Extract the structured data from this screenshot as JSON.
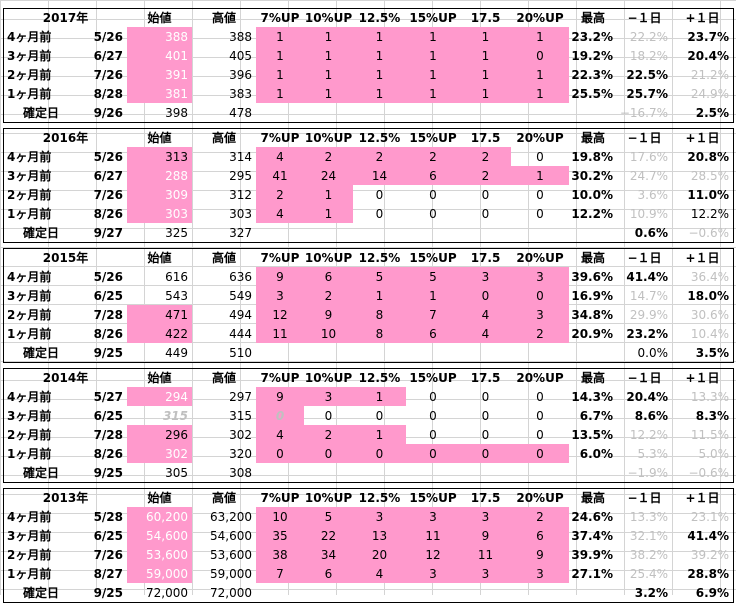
{
  "colors": {
    "pink": "#ff99cc",
    "gray": "#c0c0c0",
    "text": "#000000"
  },
  "blocks": [
    {
      "year": "2017年",
      "header": [
        "始値",
        "高値",
        "7%UP",
        "10%UP",
        "12.5%",
        "15%UP",
        "17.5",
        "20%UP",
        "最高",
        "−１日",
        "+１日"
      ],
      "rows": [
        {
          "label": "4ヶ月前",
          "date": "5/26",
          "open": "388",
          "high": "388",
          "ups": [
            "1",
            "1",
            "1",
            "1",
            "1",
            "1"
          ],
          "max": "23.2%",
          "prev": "22.2%",
          "next": "23.7%"
        },
        {
          "label": "3ヶ月前",
          "date": "6/27",
          "open": "401",
          "high": "405",
          "ups": [
            "1",
            "1",
            "1",
            "1",
            "1",
            "0"
          ],
          "max": "19.2%",
          "prev": "18.2%",
          "next": "20.4%"
        },
        {
          "label": "2ヶ月前",
          "date": "7/26",
          "open": "391",
          "high": "396",
          "ups": [
            "1",
            "1",
            "1",
            "1",
            "1",
            "1"
          ],
          "max": "22.3%",
          "prev": "22.5%",
          "next": "21.2%"
        },
        {
          "label": "1ヶ月前",
          "date": "8/28",
          "open": "381",
          "high": "383",
          "ups": [
            "1",
            "1",
            "1",
            "1",
            "1",
            "1"
          ],
          "max": "25.5%",
          "prev": "25.7%",
          "next": "24.9%"
        }
      ],
      "confirm": {
        "label": "確定日",
        "date": "9/26",
        "open": "398",
        "high": "478",
        "prev": "−16.7%",
        "next": "2.5%"
      }
    },
    {
      "year": "2016年",
      "header": [
        "始値",
        "高値",
        "7%UP",
        "10%UP",
        "12.5%",
        "15%UP",
        "17.5",
        "20%UP",
        "最高",
        "−１日",
        "+１日"
      ],
      "rows": [
        {
          "label": "4ヶ月前",
          "date": "5/26",
          "open": "313",
          "high": "314",
          "ups": [
            "4",
            "2",
            "2",
            "2",
            "2",
            "0"
          ],
          "max": "19.8%",
          "prev": "17.6%",
          "next": "20.8%"
        },
        {
          "label": "3ヶ月前",
          "date": "6/27",
          "open": "288",
          "high": "295",
          "ups": [
            "41",
            "24",
            "14",
            "6",
            "2",
            "1"
          ],
          "max": "30.2%",
          "prev": "24.7%",
          "next": "28.5%"
        },
        {
          "label": "2ヶ月前",
          "date": "7/26",
          "open": "309",
          "high": "312",
          "ups": [
            "2",
            "1",
            "0",
            "0",
            "0",
            "0"
          ],
          "max": "10.0%",
          "prev": "3.6%",
          "next": "11.0%"
        },
        {
          "label": "1ヶ月前",
          "date": "8/26",
          "open": "303",
          "high": "303",
          "ups": [
            "4",
            "1",
            "0",
            "0",
            "0",
            "0"
          ],
          "max": "12.2%",
          "prev": "10.9%",
          "next": "12.2%"
        }
      ],
      "confirm": {
        "label": "確定日",
        "date": "9/27",
        "open": "325",
        "high": "327",
        "prev": "0.6%",
        "next": "−0.6%"
      }
    },
    {
      "year": "2015年",
      "header": [
        "始値",
        "高値",
        "7%UP",
        "10%UP",
        "12.5%",
        "15%UP",
        "17.5",
        "20%UP",
        "最高",
        "−１日",
        "+１日"
      ],
      "rows": [
        {
          "label": "4ヶ月前",
          "date": "5/26",
          "open": "616",
          "high": "636",
          "ups": [
            "9",
            "6",
            "5",
            "5",
            "3",
            "3"
          ],
          "max": "39.6%",
          "prev": "41.4%",
          "next": "36.4%"
        },
        {
          "label": "3ヶ月前",
          "date": "6/25",
          "open": "543",
          "high": "549",
          "ups": [
            "3",
            "2",
            "1",
            "1",
            "0",
            "0"
          ],
          "max": "16.9%",
          "prev": "14.7%",
          "next": "18.0%"
        },
        {
          "label": "2ヶ月前",
          "date": "7/28",
          "open": "471",
          "high": "494",
          "ups": [
            "12",
            "9",
            "8",
            "7",
            "4",
            "3"
          ],
          "max": "34.8%",
          "prev": "29.9%",
          "next": "30.6%"
        },
        {
          "label": "1ヶ月前",
          "date": "8/26",
          "open": "422",
          "high": "444",
          "ups": [
            "11",
            "10",
            "8",
            "6",
            "4",
            "2"
          ],
          "max": "20.9%",
          "prev": "23.2%",
          "next": "10.4%"
        }
      ],
      "confirm": {
        "label": "確定日",
        "date": "9/25",
        "open": "449",
        "high": "510",
        "prev": "0.0%",
        "next": "3.5%"
      }
    },
    {
      "year": "2014年",
      "header": [
        "始値",
        "高値",
        "7%UP",
        "10%UP",
        "12.5%",
        "15%UP",
        "17.5",
        "20%UP",
        "最高",
        "−１日",
        "+１日"
      ],
      "rows": [
        {
          "label": "4ヶ月前",
          "date": "5/27",
          "open": "294",
          "high": "297",
          "ups": [
            "9",
            "3",
            "1",
            "0",
            "0",
            "0"
          ],
          "max": "14.3%",
          "prev": "20.4%",
          "next": "13.3%"
        },
        {
          "label": "3ヶ月前",
          "date": "6/25",
          "open": "315",
          "high": "315",
          "ups": [
            "0",
            "0",
            "0",
            "0",
            "0",
            "0"
          ],
          "max": "6.7%",
          "prev": "8.6%",
          "next": "8.3%"
        },
        {
          "label": "2ヶ月前",
          "date": "7/28",
          "open": "296",
          "high": "302",
          "ups": [
            "4",
            "2",
            "1",
            "0",
            "0",
            "0"
          ],
          "max": "13.5%",
          "prev": "12.2%",
          "next": "11.5%"
        },
        {
          "label": "1ヶ月前",
          "date": "8/26",
          "open": "302",
          "high": "320",
          "ups": [
            "0",
            "0",
            "0",
            "0",
            "0",
            "0"
          ],
          "max": "6.0%",
          "prev": "5.3%",
          "next": "5.0%"
        }
      ],
      "confirm": {
        "label": "確定日",
        "date": "9/25",
        "open": "305",
        "high": "308",
        "prev": "−1.9%",
        "next": "−0.6%"
      }
    },
    {
      "year": "2013年",
      "header": [
        "始値",
        "高値",
        "7%UP",
        "10%UP",
        "12.5%",
        "15%UP",
        "17.5",
        "20%UP",
        "最高",
        "−１日",
        "+１日"
      ],
      "rows": [
        {
          "label": "4ヶ月前",
          "date": "5/28",
          "open": "60,200",
          "high": "63,200",
          "ups": [
            "10",
            "5",
            "3",
            "3",
            "3",
            "2"
          ],
          "max": "24.6%",
          "prev": "13.3%",
          "next": "23.1%"
        },
        {
          "label": "3ヶ月前",
          "date": "6/25",
          "open": "54,600",
          "high": "54,600",
          "ups": [
            "35",
            "22",
            "13",
            "11",
            "9",
            "6"
          ],
          "max": "37.4%",
          "prev": "32.1%",
          "next": "41.4%"
        },
        {
          "label": "2ヶ月前",
          "date": "7/26",
          "open": "53,600",
          "high": "53,600",
          "ups": [
            "38",
            "34",
            "20",
            "12",
            "11",
            "9"
          ],
          "max": "39.9%",
          "prev": "38.2%",
          "next": "39.2%"
        },
        {
          "label": "1ヶ月前",
          "date": "8/27",
          "open": "59,000",
          "high": "59,000",
          "ups": [
            "7",
            "6",
            "4",
            "3",
            "3",
            "3"
          ],
          "max": "27.1%",
          "prev": "25.4%",
          "next": "28.8%"
        }
      ],
      "confirm": {
        "label": "確定日",
        "date": "9/25",
        "open": "72,000",
        "high": "72,000",
        "prev": "3.2%",
        "next": "6.9%"
      }
    }
  ],
  "styles": [
    {
      "pink_open": [
        true,
        true,
        true,
        true
      ],
      "pink_ups": [
        true,
        true,
        true,
        true
      ],
      "open_white": [
        true,
        true,
        true,
        true
      ],
      "prev": [
        {
          "c": "g"
        },
        {
          "c": "g"
        },
        {
          "c": "b"
        },
        {
          "c": "b"
        },
        {
          "c": "g"
        }
      ],
      "next": [
        {
          "c": "b"
        },
        {
          "c": "b"
        },
        {
          "c": "g"
        },
        {
          "c": "g"
        },
        {
          "c": "b"
        }
      ]
    },
    {
      "pink_open": [
        true,
        true,
        true,
        true
      ],
      "pink_ups": [
        [
          true,
          true,
          true,
          true,
          true,
          false
        ],
        [
          true,
          true,
          true,
          true,
          true,
          true
        ],
        [
          true,
          true,
          false,
          false,
          false,
          false
        ],
        [
          true,
          true,
          false,
          false,
          false,
          false
        ]
      ],
      "open_white": [
        false,
        true,
        true,
        true
      ],
      "prev": [
        {
          "c": "g"
        },
        {
          "c": "g"
        },
        {
          "c": "g"
        },
        {
          "c": "g"
        },
        {
          "c": "b"
        }
      ],
      "next": [
        {
          "c": "b"
        },
        {
          "c": "g"
        },
        {
          "c": "b"
        },
        {
          "c": "n"
        },
        {
          "c": "g"
        }
      ]
    },
    {
      "pink_open": [
        false,
        false,
        true,
        true
      ],
      "pink_ups": [
        true,
        true,
        true,
        true
      ],
      "open_white": [
        false,
        false,
        false,
        false
      ],
      "prev": [
        {
          "c": "b"
        },
        {
          "c": "g"
        },
        {
          "c": "g"
        },
        {
          "c": "b"
        },
        {
          "c": "n"
        }
      ],
      "next": [
        {
          "c": "g"
        },
        {
          "c": "b"
        },
        {
          "c": "g"
        },
        {
          "c": "g"
        },
        {
          "c": "b"
        }
      ]
    },
    {
      "pink_open": [
        true,
        false,
        true,
        true
      ],
      "pink_ups": [
        [
          true,
          true,
          true,
          false,
          false,
          false
        ],
        [
          true,
          false,
          false,
          false,
          false,
          false
        ],
        [
          true,
          true,
          true,
          false,
          false,
          false
        ],
        [
          true,
          true,
          true,
          true,
          true,
          true
        ]
      ],
      "open_white": [
        true,
        false,
        false,
        true
      ],
      "prev": [
        {
          "c": "b"
        },
        {
          "c": "b"
        },
        {
          "c": "g"
        },
        {
          "c": "g"
        },
        {
          "c": "g"
        }
      ],
      "next": [
        {
          "c": "g"
        },
        {
          "c": "b"
        },
        {
          "c": "g"
        },
        {
          "c": "g"
        },
        {
          "c": "g"
        }
      ]
    },
    {
      "pink_open": [
        true,
        true,
        true,
        true
      ],
      "pink_ups": [
        true,
        true,
        true,
        true
      ],
      "open_white": [
        true,
        true,
        true,
        true
      ],
      "prev": [
        {
          "c": "g"
        },
        {
          "c": "g"
        },
        {
          "c": "g"
        },
        {
          "c": "g"
        },
        {
          "c": "b"
        }
      ],
      "next": [
        {
          "c": "g"
        },
        {
          "c": "b"
        },
        {
          "c": "g"
        },
        {
          "c": "b"
        },
        {
          "c": "b"
        }
      ]
    }
  ]
}
